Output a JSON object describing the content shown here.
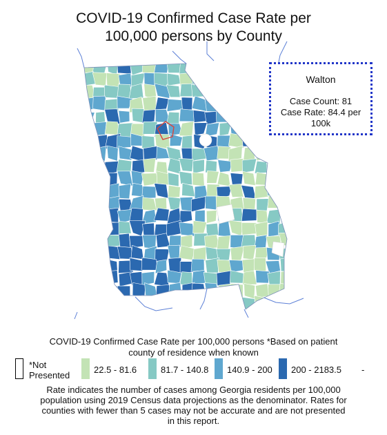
{
  "title_line1": "COVID-19 Confirmed Case Rate per",
  "title_line2": "100,000 persons by County",
  "tooltip": {
    "county": "Walton",
    "count_line": "Case Count: 81",
    "rate_line1": "Case Rate: 84.4 per",
    "rate_line2": "100k"
  },
  "legend": {
    "title_line1": "COVID-19 Confirmed Case Rate per 100,000 persons *Based on patient",
    "title_line2": "county of residence when known",
    "items": [
      {
        "label_line1": "*Not",
        "label_line2": "Presented",
        "color": "#ffffff"
      },
      {
        "label": "22.5 - 81.6",
        "color": "#c3e3b5"
      },
      {
        "label": "81.7 - 140.8",
        "color": "#86c9c4"
      },
      {
        "label": "140.9 - 200",
        "color": "#5fa7cf"
      },
      {
        "label": "200 - 2183.5",
        "color": "#2b69b0"
      }
    ],
    "trailing": "-"
  },
  "footnote": [
    "Rate indicates the number of cases among Georgia residents per 100,000",
    "population using 2019 Census data projections as the denominator. Rates for",
    "counties with fewer than 5 cases may not be accurate and are not presented",
    "in this report."
  ],
  "colors": {
    "highlight": "#d9453c",
    "tooltip_border": "#2035c8",
    "water": "#5b7fd6"
  }
}
